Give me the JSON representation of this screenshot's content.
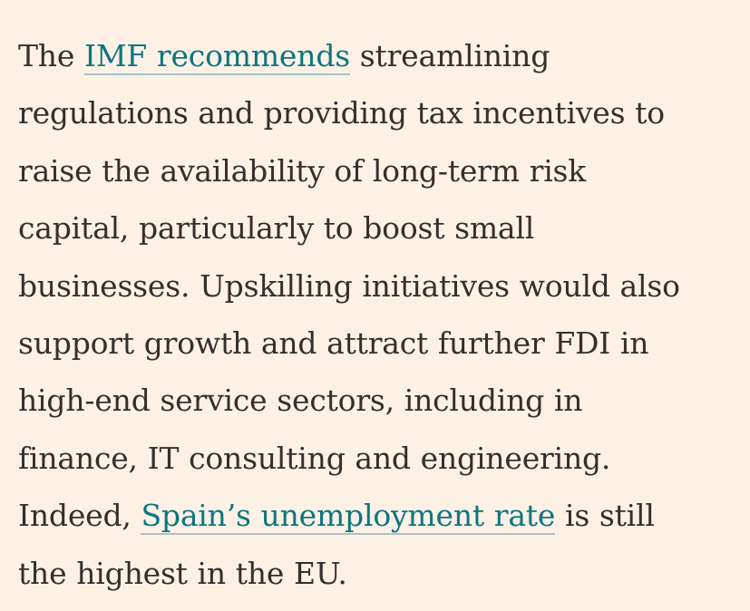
{
  "article": {
    "lines": [
      {
        "before": "The ",
        "link": "IMF recommends",
        "after": " streamlining"
      },
      {
        "text": "regulations and providing tax incentives to"
      },
      {
        "text": "raise the availability of long-term risk"
      },
      {
        "text": "capital, particularly to boost small"
      },
      {
        "text": "businesses. Upskilling initiatives would also"
      },
      {
        "text": "support growth and attract further FDI in"
      },
      {
        "text": "high-end service sectors, including in"
      },
      {
        "text": "finance, IT consulting and engineering."
      },
      {
        "before": "Indeed, ",
        "link": "Spain’s unemployment rate",
        "after": " is still"
      },
      {
        "text": "the highest in the EU."
      }
    ]
  },
  "colors": {
    "background": "#fdf1e6",
    "text": "#33302e",
    "link": "#0d7680",
    "link_underline": "#a7c3c6"
  }
}
